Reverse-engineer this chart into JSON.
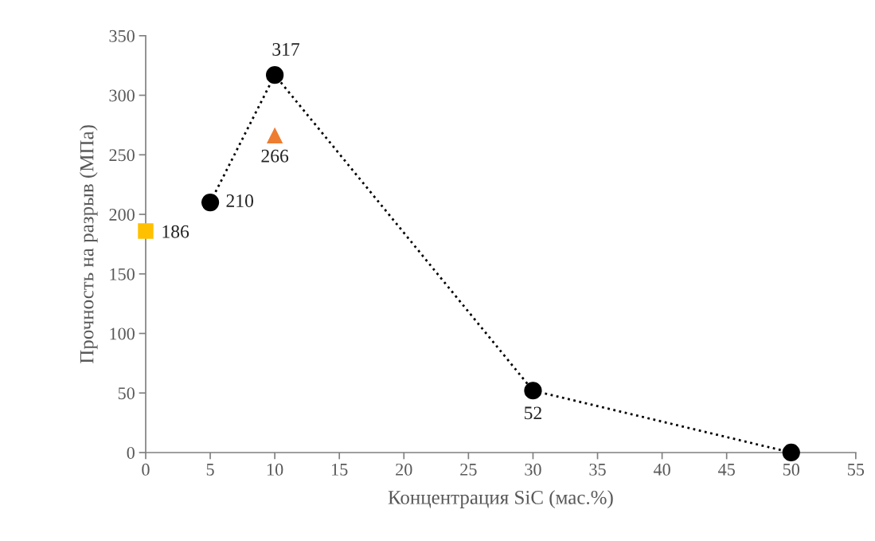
{
  "chart_data": {
    "type": "line",
    "xlabel": "Концентрация SiC (мас.%)",
    "ylabel": "Прочность на разрыв (МПа)",
    "xlim": [
      0,
      55
    ],
    "xticks": [
      0,
      5,
      10,
      15,
      20,
      25,
      30,
      35,
      40,
      45,
      50,
      55
    ],
    "ylim": [
      0,
      350
    ],
    "yticks": [
      0,
      50,
      100,
      150,
      200,
      250,
      300,
      350
    ],
    "grid": false,
    "legend": false,
    "series": [
      {
        "color": "#000000",
        "marker": "circle",
        "line_style": "dotted",
        "x": [
          5,
          10,
          30,
          50
        ],
        "values": [
          210,
          317,
          52,
          0
        ],
        "value_labels": [
          "210",
          "317",
          "52",
          null
        ]
      },
      {
        "type": "scatter",
        "color": "#ffc000",
        "marker": "square",
        "x": [
          0
        ],
        "values": [
          186
        ],
        "value_labels": [
          "186"
        ]
      },
      {
        "type": "scatter",
        "color": "#ed7d31",
        "marker": "triangle",
        "x": [
          10
        ],
        "values": [
          266
        ],
        "value_labels": [
          "266"
        ]
      }
    ]
  }
}
